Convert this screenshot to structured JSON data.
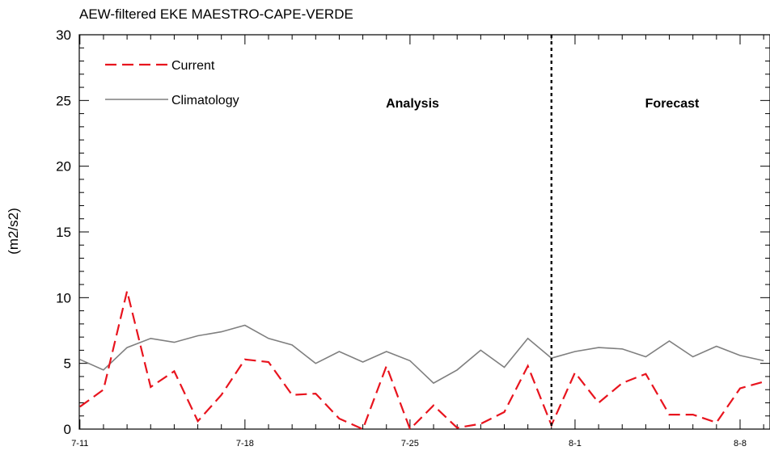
{
  "chart_data": {
    "type": "line",
    "title": "AEW-filtered EKE MAESTRO-CAPE-VERDE",
    "xlabel": "",
    "ylabel": "(m2/s2)",
    "ylim": [
      0,
      30
    ],
    "y_ticks": [
      0,
      5,
      10,
      15,
      20,
      25,
      30
    ],
    "x_tick_labels": [
      "7-11",
      "7-18",
      "7-25",
      "8-1",
      "8-8"
    ],
    "x_start_label": "7-11",
    "x_range_days": [
      0,
      29
    ],
    "series": [
      {
        "name": "Current",
        "color": "#e8141e",
        "dash": "dashed",
        "x": [
          0,
          1,
          2,
          3,
          4,
          5,
          6,
          7,
          8,
          9,
          10,
          11,
          12,
          13,
          14,
          15,
          16,
          17,
          18,
          19,
          20,
          21,
          22,
          23,
          24,
          25,
          26,
          27,
          28,
          29
        ],
        "values": [
          1.7,
          3.0,
          10.5,
          3.2,
          4.4,
          0.6,
          2.6,
          5.3,
          5.1,
          2.6,
          2.7,
          0.8,
          0.0,
          4.8,
          0.0,
          1.8,
          0.1,
          0.4,
          1.3,
          4.8,
          0.3,
          4.3,
          2.0,
          3.5,
          4.2,
          1.1,
          1.1,
          0.5,
          3.1,
          3.6
        ]
      },
      {
        "name": "Climatology",
        "color": "#7f7f7f",
        "dash": "solid",
        "x": [
          0,
          1,
          2,
          3,
          4,
          5,
          6,
          7,
          8,
          9,
          10,
          11,
          12,
          13,
          14,
          15,
          16,
          17,
          18,
          19,
          20,
          21,
          22,
          23,
          24,
          25,
          26,
          27,
          28,
          29
        ],
        "values": [
          5.3,
          4.5,
          6.2,
          6.9,
          6.6,
          7.1,
          7.4,
          7.9,
          6.9,
          6.4,
          5.0,
          5.9,
          5.1,
          5.9,
          5.2,
          3.5,
          4.5,
          6.0,
          4.7,
          6.9,
          5.4,
          5.9,
          6.2,
          6.1,
          5.5,
          6.7,
          5.5,
          6.3,
          5.6,
          5.2
        ]
      }
    ],
    "divider_x": 20,
    "annotations": [
      "Analysis",
      "Forecast"
    ],
    "legend_placement": "top-left",
    "grid": false
  }
}
